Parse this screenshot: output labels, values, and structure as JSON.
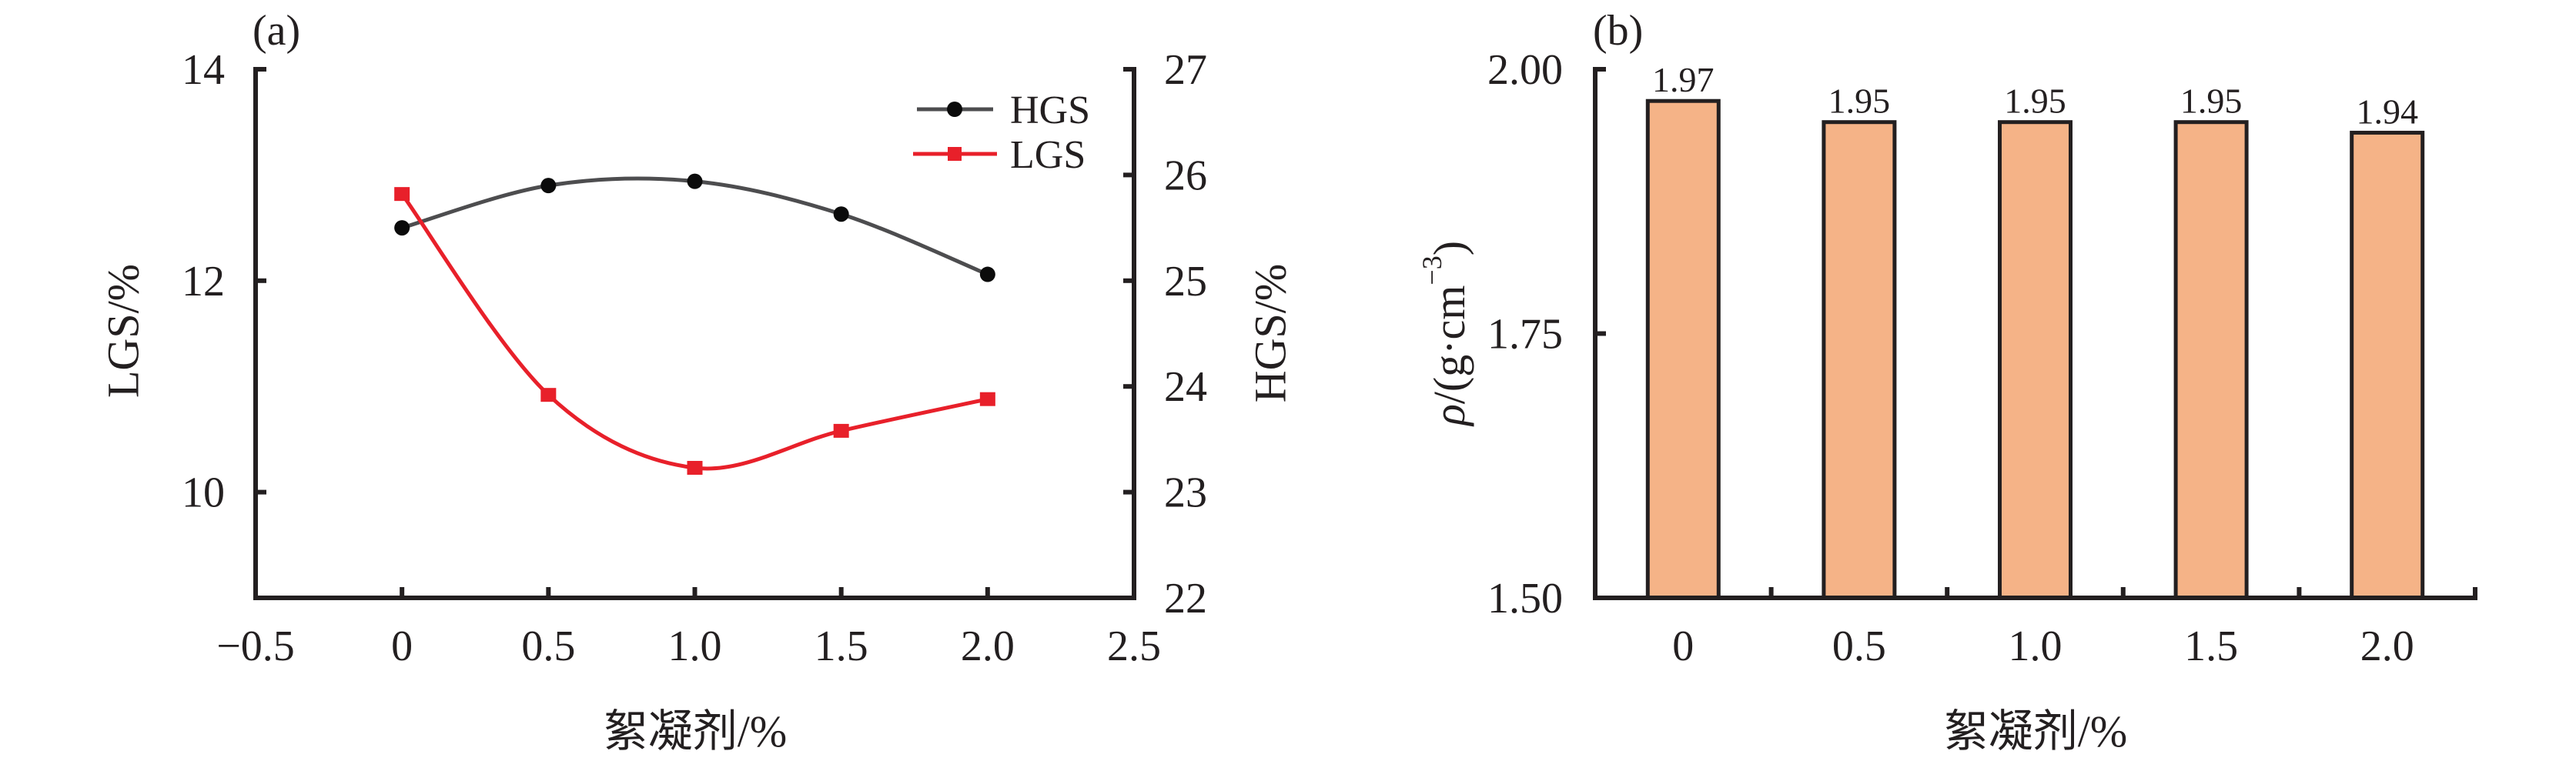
{
  "colors": {
    "hgs_line": "#4d4d4f",
    "hgs_marker": "#0b0b0b",
    "lgs": "#e8202a",
    "bar_fill": "#f5b387",
    "bar_edge": "#231f20",
    "axis": "#231f20"
  },
  "chart_data": [
    {
      "panel_label": "(a)",
      "type": "line",
      "xlabel": "絮凝剂/%",
      "ylabel_left": "LGS/%",
      "ylabel_right": "HGS/%",
      "xlim": [
        -0.5,
        2.5
      ],
      "ylim_left": [
        9,
        14
      ],
      "ylim_right": [
        22,
        27
      ],
      "x_ticks": [
        -0.5,
        0,
        0.5,
        1.0,
        1.5,
        2.0,
        2.5
      ],
      "x_tick_labels": [
        "−0.5",
        "0",
        "0.5",
        "1.0",
        "1.5",
        "2.0",
        "2.5"
      ],
      "y_left_ticks": [
        10,
        12,
        14
      ],
      "y_left_tick_labels": [
        "10",
        "12",
        "14"
      ],
      "y_right_ticks": [
        22,
        23,
        24,
        25,
        26,
        27
      ],
      "y_right_tick_labels": [
        "22",
        "23",
        "24",
        "25",
        "26",
        "27"
      ],
      "grid": false,
      "legend_position": "top-right",
      "x": [
        0,
        0.5,
        1.0,
        1.5,
        2.0
      ],
      "series": [
        {
          "name": "HGS",
          "axis": "right",
          "marker": "circle",
          "values": [
            25.5,
            25.9,
            25.94,
            25.63,
            25.06
          ]
        },
        {
          "name": "LGS",
          "axis": "left",
          "marker": "square",
          "values": [
            12.82,
            10.92,
            10.23,
            10.58,
            10.88
          ]
        }
      ]
    },
    {
      "panel_label": "(b)",
      "type": "bar",
      "xlabel": "絮凝剂/%",
      "ylabel": "ρ/(g·cm⁻³)",
      "ylabel_parts": {
        "rho": "ρ",
        "pre": "/(g·cm",
        "sup": "−3",
        "post": ")"
      },
      "ylim": [
        1.5,
        2.0
      ],
      "y_ticks": [
        1.5,
        1.75,
        2.0
      ],
      "y_tick_labels": [
        "1.50",
        "1.75",
        "2.00"
      ],
      "grid": false,
      "categories": [
        "0",
        "0.5",
        "1.0",
        "1.5",
        "2.0"
      ],
      "values": [
        1.97,
        1.95,
        1.95,
        1.95,
        1.94
      ],
      "value_labels": [
        "1.97",
        "1.95",
        "1.95",
        "1.95",
        "1.94"
      ]
    }
  ]
}
